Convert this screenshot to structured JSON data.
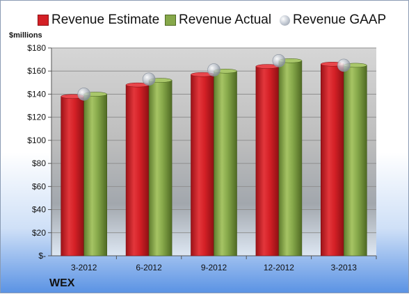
{
  "legend": {
    "estimate": "Revenue Estimate",
    "actual": "Revenue Actual",
    "gaap": "Revenue GAAP"
  },
  "unit_label": "$millions",
  "company": "WEX",
  "colors": {
    "estimate": "#d42026",
    "actual": "#86a84a",
    "gaap": "#b8bfc9",
    "plot_bg": "#c8c8c8"
  },
  "chart_data": {
    "type": "bar",
    "categories": [
      "3-2012",
      "6-2012",
      "9-2012",
      "12-2012",
      "3-2013"
    ],
    "series": [
      {
        "name": "Revenue Estimate",
        "values": [
          138,
          148,
          157,
          164,
          166
        ]
      },
      {
        "name": "Revenue Actual",
        "values": [
          140,
          152,
          160,
          169,
          165
        ]
      },
      {
        "name": "Revenue GAAP",
        "values": [
          140,
          153,
          161,
          169,
          165
        ]
      }
    ],
    "yticks": [
      "$-",
      "$20",
      "$40",
      "$60",
      "$80",
      "$100",
      "$120",
      "$140",
      "$160",
      "$180"
    ],
    "ylim": [
      0,
      180
    ],
    "grid": true,
    "legend_position": "top"
  }
}
